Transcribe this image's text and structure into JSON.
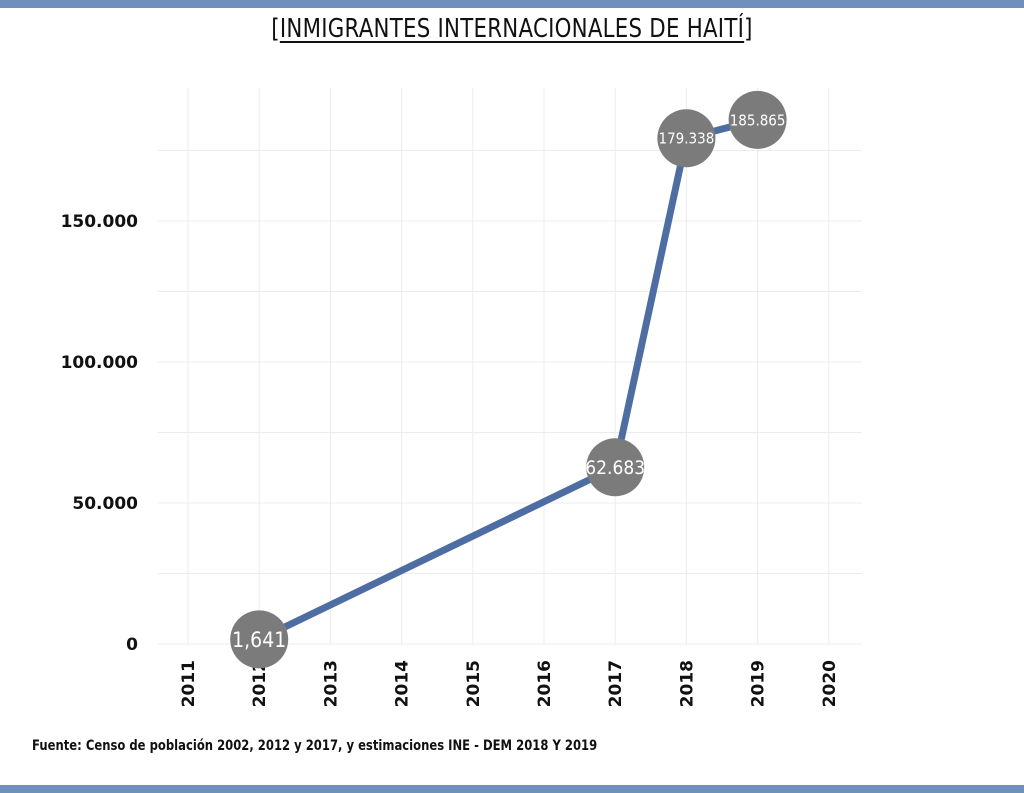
{
  "title": "INMIGRANTES INTERNACIONALES DE HAITÍ",
  "title_prefix": "[",
  "title_suffix": "]",
  "source": "Fuente: Censo de población 2002, 2012 y 2017, y estimaciones INE - DEM 2018 Y 2019",
  "colors": {
    "band": "#6f8fbd",
    "line": "#4e6ea3",
    "bubble": "#7b7b7b",
    "grid": "#ececec"
  },
  "chart_data": {
    "type": "line",
    "title": "INMIGRANTES INTERNACIONALES DE HAITÍ",
    "xlabel": "",
    "ylabel": "",
    "x_ticks": [
      "2011",
      "2012",
      "2013",
      "2014",
      "2015",
      "2016",
      "2017",
      "2018",
      "2019",
      "2020"
    ],
    "y_ticks": [
      {
        "value": 0,
        "label": "0"
      },
      {
        "value": 50000,
        "label": "50.000"
      },
      {
        "value": 100000,
        "label": "100.000"
      },
      {
        "value": 150000,
        "label": "150.000"
      }
    ],
    "xlim": [
      2011,
      2020
    ],
    "ylim": [
      0,
      195000
    ],
    "grid": true,
    "series": [
      {
        "points": [
          {
            "x": 2012,
            "y": 1641,
            "label": "1,641"
          },
          {
            "x": 2017,
            "y": 62683,
            "label": "62.683"
          },
          {
            "x": 2018,
            "y": 179338,
            "label": "179.338"
          },
          {
            "x": 2019,
            "y": 185865,
            "label": "185.865"
          }
        ]
      }
    ]
  }
}
